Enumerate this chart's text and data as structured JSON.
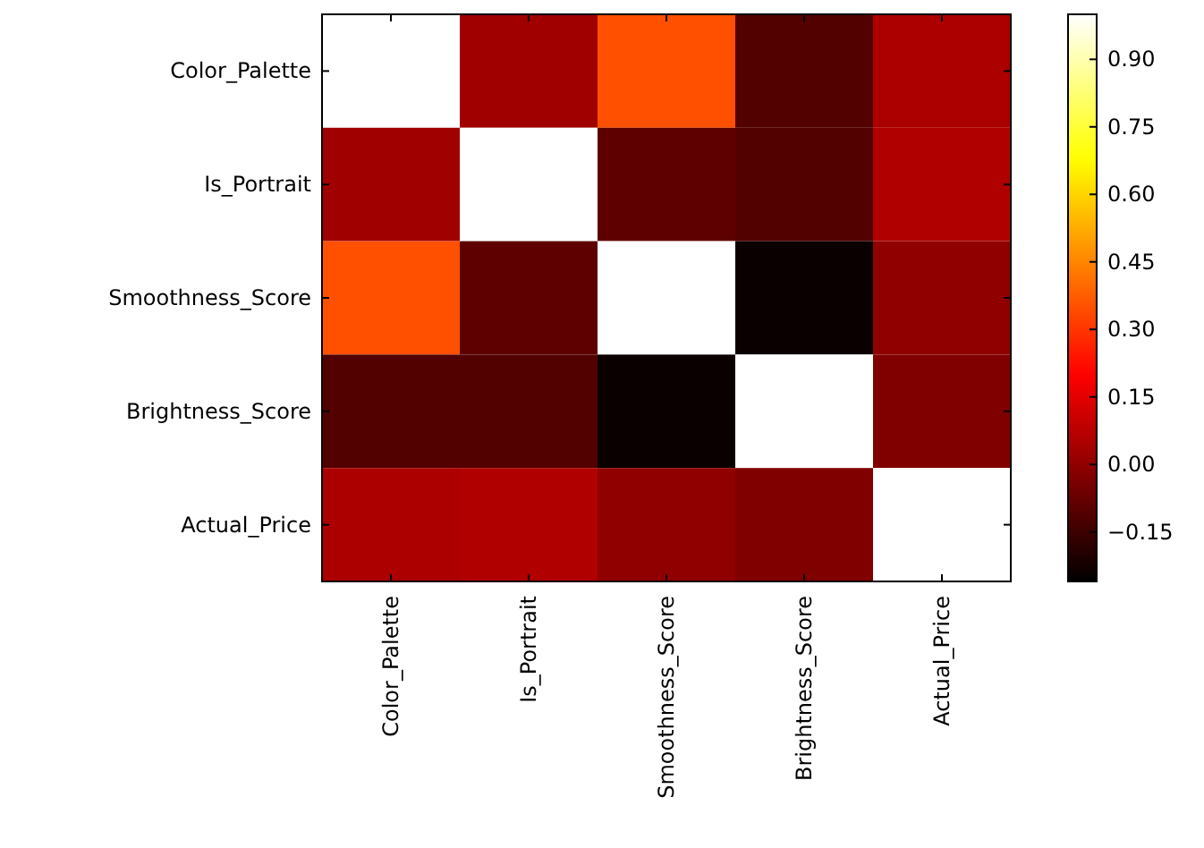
{
  "chart_data": {
    "type": "heatmap",
    "categories": [
      "Color_Palette",
      "Is_Portrait",
      "Smoothness_Score",
      "Brightness_Score",
      "Actual_Price"
    ],
    "y_categories": [
      "Color_Palette",
      "Is_Portrait",
      "Smoothness_Score",
      "Brightness_Score",
      "Actual_Price"
    ],
    "cells": [
      [
        1.0,
        0.03,
        0.35,
        -0.11,
        0.05
      ],
      [
        0.03,
        1.0,
        -0.09,
        -0.11,
        0.06
      ],
      [
        0.35,
        -0.09,
        1.0,
        -0.24,
        0.0
      ],
      [
        -0.11,
        -0.11,
        -0.24,
        1.0,
        -0.03
      ],
      [
        0.05,
        0.06,
        0.0,
        -0.03,
        1.0
      ]
    ],
    "clim": [
      -0.26,
      1.0
    ],
    "cticks": [
      {
        "value": -0.15,
        "label": "−0.15"
      },
      {
        "value": 0.0,
        "label": "0.00"
      },
      {
        "value": 0.15,
        "label": "0.15"
      },
      {
        "value": 0.3,
        "label": "0.30"
      },
      {
        "value": 0.45,
        "label": "0.45"
      },
      {
        "value": 0.6,
        "label": "0.60"
      },
      {
        "value": 0.75,
        "label": "0.75"
      },
      {
        "value": 0.9,
        "label": "0.90"
      }
    ]
  }
}
